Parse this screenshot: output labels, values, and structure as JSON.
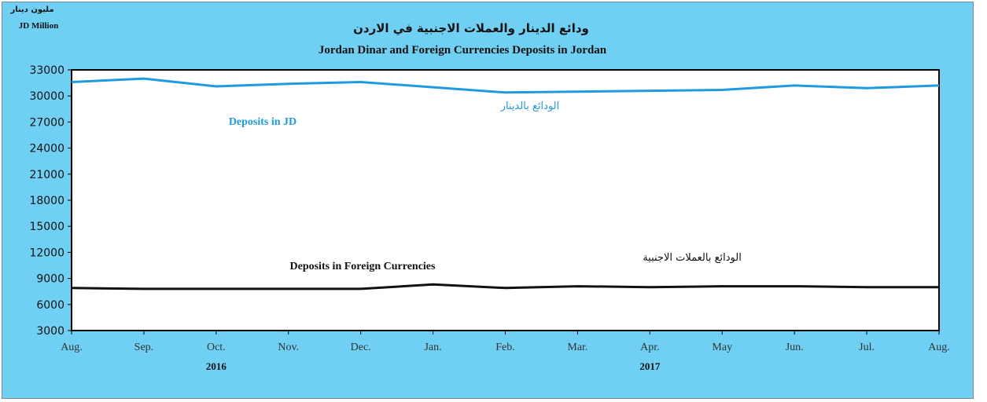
{
  "chart_data": {
    "type": "line",
    "title": "Jordan Dinar and Foreign Currencies Deposits in Jordan",
    "title_ar": "ودائع الدينار والعملات الاجنبية في الاردن",
    "ylabel": "JD Million",
    "ylabel_ar": "مليون دينار",
    "ylim": [
      3000,
      33000
    ],
    "yticks": [
      "3000",
      "6000",
      "9000",
      "12000",
      "15000",
      "18000",
      "21000",
      "24000",
      "27000",
      "30000",
      "33000"
    ],
    "categories": [
      "Aug.",
      "Sep.",
      "Oct.",
      "Nov.",
      "Dec.",
      "Jan.",
      "Feb.",
      "Mar.",
      "Apr.",
      "May",
      "Jun.",
      "Jul.",
      "Aug."
    ],
    "years": [
      {
        "label": "2016",
        "category_index": 2
      },
      {
        "label": "2017",
        "category_index": 8
      }
    ],
    "grid": false,
    "series": [
      {
        "name": "Deposits in JD",
        "name_ar": "الودائع بالدينار",
        "color": "#1e9be0",
        "values": [
          31600,
          32000,
          31100,
          31400,
          31600,
          31000,
          30400,
          30500,
          30600,
          30700,
          31200,
          30900,
          31200
        ]
      },
      {
        "name": "Deposits in Foreign Currencies",
        "name_ar": "الودائع بالعملات الاجنبية",
        "color": "#111111",
        "values": [
          7900,
          7800,
          7800,
          7800,
          7800,
          8300,
          7900,
          8100,
          8000,
          8100,
          8100,
          8000,
          8000
        ]
      }
    ]
  }
}
